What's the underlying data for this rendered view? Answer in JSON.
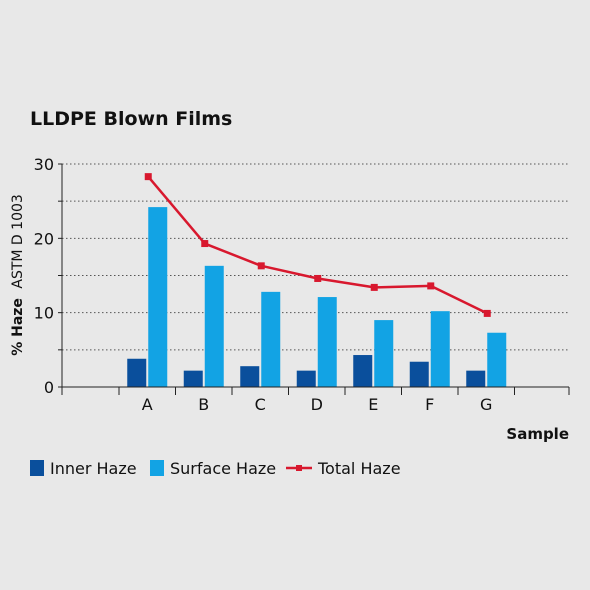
{
  "chart_data": {
    "type": "bar",
    "title": "LLDPE Blown Films",
    "ylabel_bold": "% Haze",
    "ylabel_rest": "ASTM D 1003",
    "xlabel": "Sample",
    "categories": [
      "A",
      "B",
      "C",
      "D",
      "E",
      "F",
      "G"
    ],
    "ylim": [
      0,
      30
    ],
    "yticks": [
      "0",
      "10",
      "20",
      "30"
    ],
    "grid": true,
    "legend_position": "bottom-left",
    "series": [
      {
        "name": "Inner Haze",
        "kind": "bar",
        "color": "#0a4f9c",
        "values": [
          3.8,
          2.2,
          2.8,
          2.2,
          4.3,
          3.4,
          2.2
        ]
      },
      {
        "name": "Surface Haze",
        "kind": "bar",
        "color": "#12a3e4",
        "values": [
          24.2,
          16.3,
          12.8,
          12.1,
          9.0,
          10.2,
          7.3
        ]
      },
      {
        "name": "Total Haze",
        "kind": "line",
        "color": "#d8182e",
        "values": [
          28.3,
          19.3,
          16.3,
          14.6,
          13.4,
          13.6,
          9.9
        ]
      }
    ]
  }
}
